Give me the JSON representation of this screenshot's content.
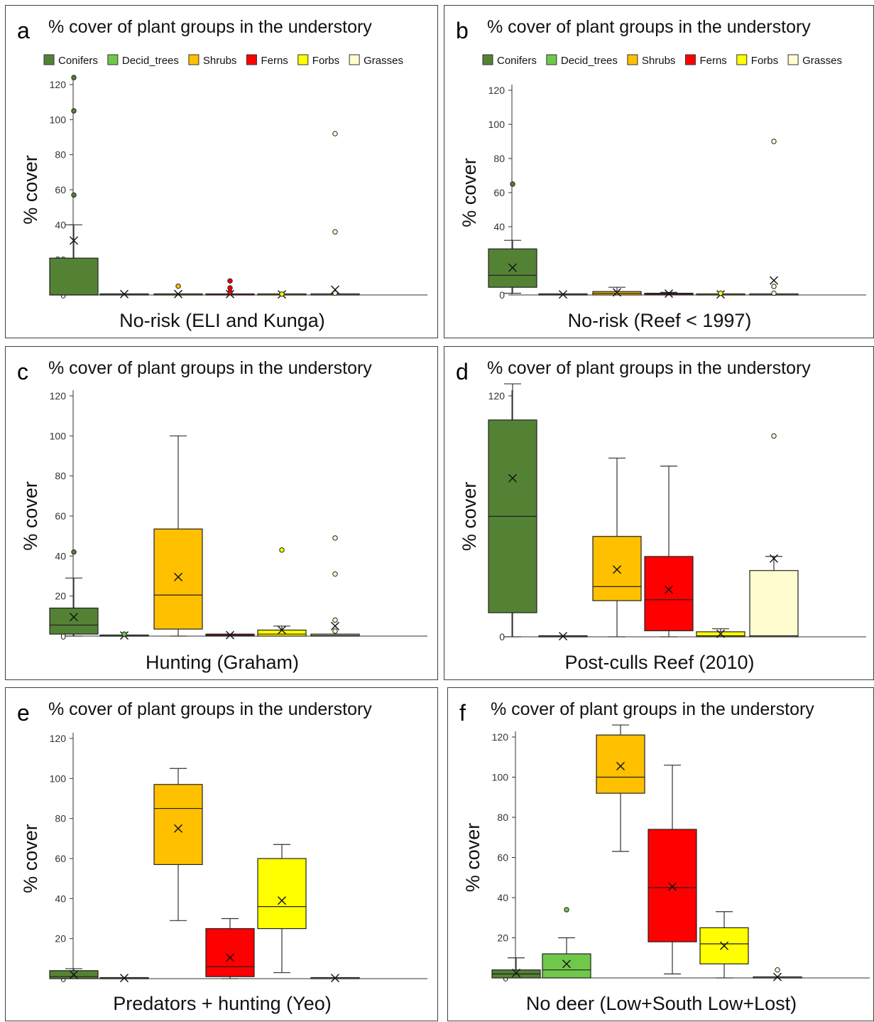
{
  "figure": {
    "panel_title": "% cover of plant groups in the understory",
    "ylabel": "% cover",
    "legend": [
      {
        "name": "Conifers",
        "color": "#548235"
      },
      {
        "name": "Decid_trees",
        "color": "#70c84b"
      },
      {
        "name": "Shrubs",
        "color": "#ffc000"
      },
      {
        "name": "Ferns",
        "color": "#ff0000"
      },
      {
        "name": "Forbs",
        "color": "#ffff00"
      },
      {
        "name": "Grasses",
        "color": "#fffdd0"
      }
    ]
  },
  "chart_data": [
    {
      "type": "box",
      "letter": "a",
      "title": "% cover of plant groups in the understory",
      "xlabel": "No-risk (ELI and Kunga)",
      "ylabel": "% cover",
      "ylim": [
        0,
        120
      ],
      "yticks": [
        0,
        20,
        40,
        60,
        80,
        100,
        120
      ],
      "legend": "top",
      "series": [
        {
          "name": "Conifers",
          "min": 0,
          "q1": 0,
          "median": 0,
          "q3": 21,
          "max": 40,
          "mean": 31,
          "outliers": [
            57,
            105,
            124
          ]
        },
        {
          "name": "Decid_trees",
          "min": 0,
          "q1": 0,
          "median": 0,
          "q3": 0,
          "max": 0,
          "mean": 0.5,
          "outliers": []
        },
        {
          "name": "Shrubs",
          "min": 0,
          "q1": 0,
          "median": 0,
          "q3": 0.5,
          "max": 0.5,
          "mean": 0.5,
          "outliers": [
            5
          ]
        },
        {
          "name": "Ferns",
          "min": 0,
          "q1": 0,
          "median": 0,
          "q3": 0.5,
          "max": 0.5,
          "mean": 0.5,
          "outliers": [
            1.5,
            4,
            8
          ]
        },
        {
          "name": "Forbs",
          "min": 0,
          "q1": 0,
          "median": 0,
          "q3": 0.3,
          "max": 0.3,
          "mean": 0.3,
          "outliers": [
            0.5
          ]
        },
        {
          "name": "Grasses",
          "min": 0,
          "q1": 0,
          "median": 0,
          "q3": 0.3,
          "max": 0.3,
          "mean": 3,
          "outliers": [
            1,
            36,
            92
          ]
        }
      ]
    },
    {
      "type": "box",
      "letter": "b",
      "title": "% cover of plant groups in the understory",
      "xlabel": "No-risk (Reef < 1997)",
      "ylabel": "% cover",
      "ylim": [
        0,
        120
      ],
      "yticks": [
        0,
        20,
        40,
        60,
        80,
        100,
        120
      ],
      "legend": "top",
      "series": [
        {
          "name": "Conifers",
          "min": 1,
          "q1": 4.5,
          "median": 11.5,
          "q3": 27,
          "max": 32,
          "mean": 16,
          "outliers": [
            65
          ]
        },
        {
          "name": "Decid_trees",
          "min": 0,
          "q1": 0,
          "median": 0,
          "q3": 0,
          "max": 0,
          "mean": 0.3,
          "outliers": []
        },
        {
          "name": "Shrubs",
          "min": 0,
          "q1": 0,
          "median": 1,
          "q3": 2,
          "max": 4.5,
          "mean": 1.5,
          "outliers": []
        },
        {
          "name": "Ferns",
          "min": 0,
          "q1": 0,
          "median": 0.5,
          "q3": 1,
          "max": 1.5,
          "mean": 0.8,
          "outliers": []
        },
        {
          "name": "Forbs",
          "min": 0,
          "q1": 0,
          "median": 0,
          "q3": 0.3,
          "max": 0.3,
          "mean": 0.3,
          "outliers": [
            1
          ]
        },
        {
          "name": "Grasses",
          "min": 0,
          "q1": 0,
          "median": 0,
          "q3": 0.3,
          "max": 0.3,
          "mean": 8.5,
          "outliers": [
            1,
            5,
            90
          ]
        }
      ]
    },
    {
      "type": "box",
      "letter": "c",
      "title": "% cover of plant groups in the understory",
      "xlabel": "Hunting (Graham)",
      "ylabel": "% cover",
      "ylim": [
        0,
        120
      ],
      "yticks": [
        0,
        20,
        40,
        60,
        80,
        100,
        120
      ],
      "legend": "none",
      "series": [
        {
          "name": "Conifers",
          "min": 0,
          "q1": 1,
          "median": 5.5,
          "q3": 14,
          "max": 29,
          "mean": 9.5,
          "outliers": [
            42
          ]
        },
        {
          "name": "Decid_trees",
          "min": 0,
          "q1": 0,
          "median": 0,
          "q3": 0,
          "max": 0,
          "mean": 0.3,
          "outliers": [
            1
          ]
        },
        {
          "name": "Shrubs",
          "min": 0,
          "q1": 3.5,
          "median": 20.5,
          "q3": 53.5,
          "max": 100,
          "mean": 29.5,
          "outliers": []
        },
        {
          "name": "Ferns",
          "min": 0,
          "q1": 0,
          "median": 0.5,
          "q3": 1,
          "max": 1,
          "mean": 0.5,
          "outliers": []
        },
        {
          "name": "Forbs",
          "min": 0,
          "q1": 0,
          "median": 1,
          "q3": 3,
          "max": 5,
          "mean": 3,
          "outliers": [
            43
          ]
        },
        {
          "name": "Grasses",
          "min": 0,
          "q1": 0,
          "median": 0.3,
          "q3": 1,
          "max": 1,
          "mean": 5,
          "outliers": [
            2.5,
            8,
            31,
            49
          ]
        }
      ]
    },
    {
      "type": "box",
      "letter": "d",
      "title": "% cover of plant groups in the understory",
      "xlabel": "Post-culls Reef (2010)",
      "ylabel": "% cover",
      "ylim": [
        0,
        120
      ],
      "yticks": [
        0,
        20,
        40,
        60,
        80,
        100,
        120
      ],
      "legend": "none",
      "series": [
        {
          "name": "Conifers",
          "min": 0,
          "q1": 12,
          "median": 60,
          "q3": 108,
          "max": 126,
          "mean": 79,
          "outliers": []
        },
        {
          "name": "Decid_trees",
          "min": 0,
          "q1": 0,
          "median": 0,
          "q3": 0,
          "max": 0,
          "mean": 0.3,
          "outliers": []
        },
        {
          "name": "Shrubs",
          "min": 0,
          "q1": 18,
          "median": 25,
          "q3": 50,
          "max": 89,
          "mean": 33.5,
          "outliers": []
        },
        {
          "name": "Ferns",
          "min": 0,
          "q1": 3,
          "median": 18.5,
          "q3": 40,
          "max": 85,
          "mean": 23.5,
          "outliers": []
        },
        {
          "name": "Forbs",
          "min": 0,
          "q1": 0,
          "median": 0.5,
          "q3": 2.5,
          "max": 4,
          "mean": 1.5,
          "outliers": []
        },
        {
          "name": "Grasses",
          "min": 0,
          "q1": 0,
          "median": 0.5,
          "q3": 33,
          "max": 40,
          "mean": 39,
          "outliers": [
            100
          ]
        }
      ]
    },
    {
      "type": "box",
      "letter": "e",
      "title": "% cover of plant groups in the understory",
      "xlabel": "Predators + hunting (Yeo)",
      "ylabel": "% cover",
      "ylim": [
        0,
        120
      ],
      "yticks": [
        0,
        20,
        40,
        60,
        80,
        100,
        120
      ],
      "legend": "none",
      "series": [
        {
          "name": "Conifers",
          "min": 0,
          "q1": 0,
          "median": 1,
          "q3": 4,
          "max": 5,
          "mean": 2,
          "outliers": []
        },
        {
          "name": "Decid_trees",
          "min": 0,
          "q1": 0,
          "median": 0,
          "q3": 0,
          "max": 0,
          "mean": 0.3,
          "outliers": []
        },
        {
          "name": "Shrubs",
          "min": 29,
          "q1": 57,
          "median": 85,
          "q3": 97,
          "max": 105,
          "mean": 75,
          "outliers": []
        },
        {
          "name": "Ferns",
          "min": 0,
          "q1": 1,
          "median": 6,
          "q3": 25,
          "max": 30,
          "mean": 10.5,
          "outliers": []
        },
        {
          "name": "Forbs",
          "min": 3,
          "q1": 25,
          "median": 36,
          "q3": 60,
          "max": 67,
          "mean": 39,
          "outliers": []
        },
        {
          "name": "Grasses",
          "min": 0,
          "q1": 0,
          "median": 0,
          "q3": 0,
          "max": 0,
          "mean": 0.3,
          "outliers": []
        }
      ]
    },
    {
      "type": "box",
      "letter": "f",
      "title": "% cover of plant groups in the understory",
      "xlabel": "No deer (Low+South Low+Lost)",
      "ylabel": "% cover",
      "ylim": [
        0,
        120
      ],
      "yticks": [
        0,
        20,
        40,
        60,
        80,
        100,
        120
      ],
      "legend": "none",
      "series": [
        {
          "name": "Conifers",
          "min": 0,
          "q1": 0,
          "median": 2,
          "q3": 4,
          "max": 10,
          "mean": 2.5,
          "outliers": []
        },
        {
          "name": "Decid_trees",
          "min": 0,
          "q1": 0,
          "median": 4,
          "q3": 12,
          "max": 20,
          "mean": 7,
          "outliers": [
            34
          ]
        },
        {
          "name": "Shrubs",
          "min": 63,
          "q1": 92,
          "median": 100,
          "q3": 121,
          "max": 126,
          "mean": 105.5,
          "outliers": []
        },
        {
          "name": "Ferns",
          "min": 2,
          "q1": 18,
          "median": 45,
          "q3": 74,
          "max": 106,
          "mean": 45.5,
          "outliers": []
        },
        {
          "name": "Forbs",
          "min": 0,
          "q1": 7,
          "median": 17,
          "q3": 25,
          "max": 33,
          "mean": 16,
          "outliers": []
        },
        {
          "name": "Grasses",
          "min": 0,
          "q1": 0,
          "median": 0,
          "q3": 0,
          "max": 0,
          "mean": 0.5,
          "outliers": [
            4
          ]
        }
      ]
    }
  ]
}
